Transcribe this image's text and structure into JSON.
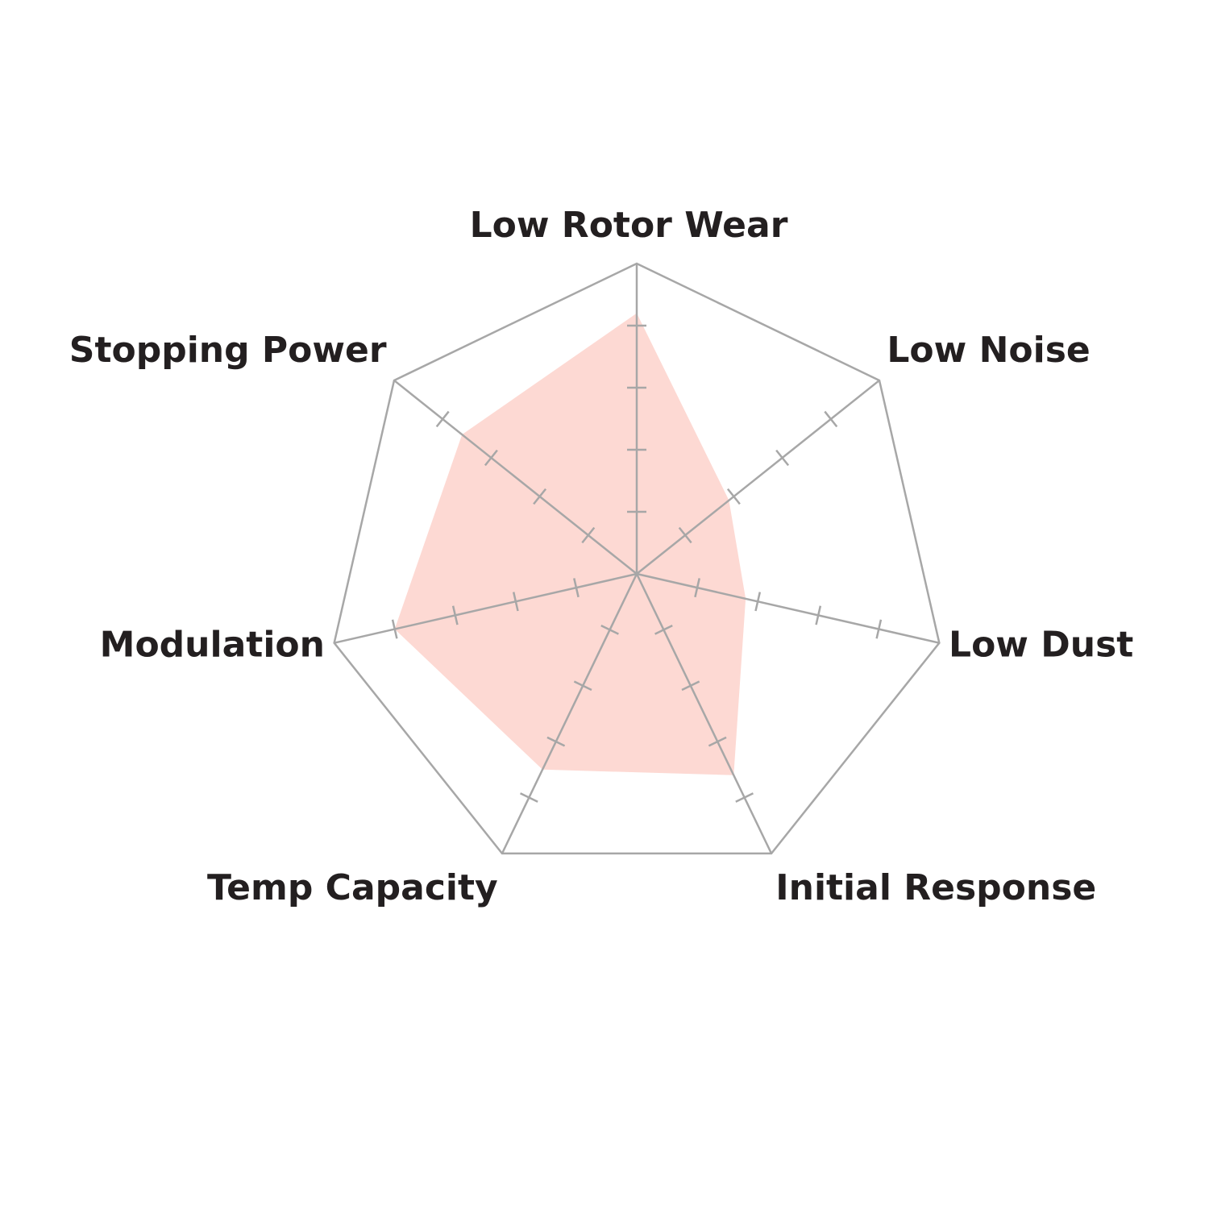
{
  "chart_data": {
    "type": "radar",
    "categories": [
      "Low Rotor Wear",
      "Low Noise",
      "Low Dust",
      "Initial Response",
      "Temp Capacity",
      "Modulation",
      "Stopping Power"
    ],
    "values": [
      4.2,
      1.9,
      1.8,
      3.6,
      3.5,
      4.0,
      3.6
    ],
    "color": "#fdd9d3",
    "rlim": [
      0,
      5
    ],
    "rticks": [
      1,
      2,
      3,
      4
    ]
  }
}
